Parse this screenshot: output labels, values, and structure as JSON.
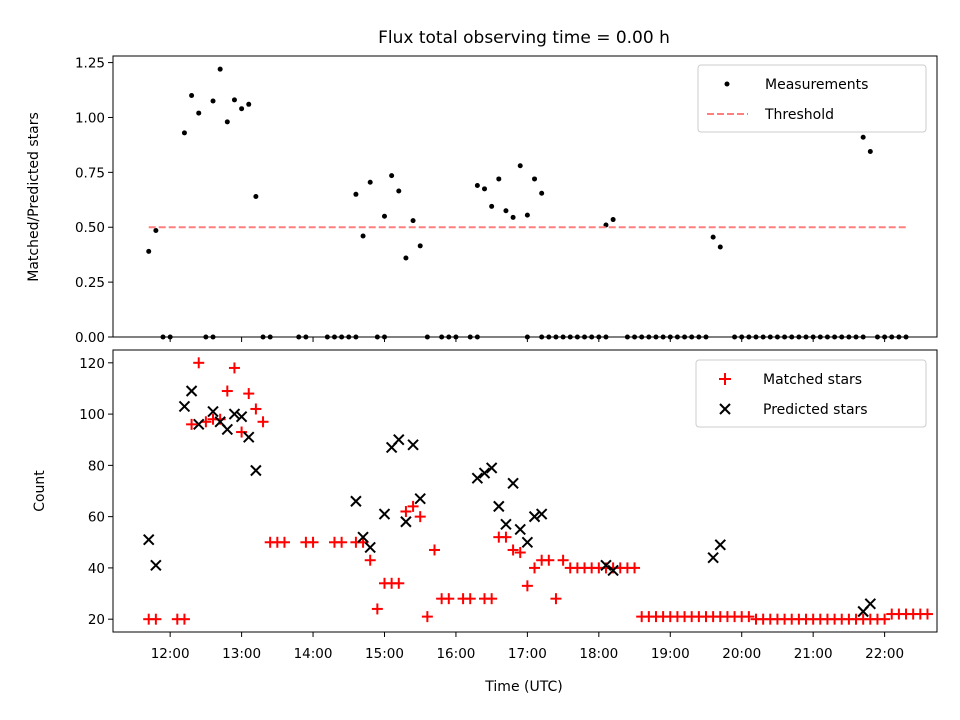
{
  "chart_data": [
    {
      "type": "scatter",
      "title": "Flux total observing time = 0.00 h",
      "xlabel": "",
      "ylabel": "Matched/Predicted stars",
      "ylim": [
        0,
        1.28
      ],
      "yticks": [
        0.0,
        0.25,
        0.5,
        0.75,
        1.0,
        1.25
      ],
      "ytick_labels": [
        "0.00",
        "0.25",
        "0.50",
        "0.75",
        "1.00",
        "1.25"
      ],
      "xlim": [
        "11:12",
        "22:44"
      ],
      "legend": {
        "placement": "top-right",
        "entries": [
          "Measurements",
          "Threshold"
        ]
      },
      "series": [
        {
          "name": "Measurements",
          "marker": "dot",
          "color": "#000000",
          "points": [
            [
              "11:42",
              0.39
            ],
            [
              "11:48",
              0.485
            ],
            [
              "12:12",
              0.93
            ],
            [
              "12:18",
              1.1
            ],
            [
              "12:24",
              1.02
            ],
            [
              "12:36",
              1.075
            ],
            [
              "12:42",
              1.22
            ],
            [
              "12:48",
              0.98
            ],
            [
              "12:54",
              1.08
            ],
            [
              "13:00",
              1.04
            ],
            [
              "13:06",
              1.06
            ],
            [
              "13:12",
              0.64
            ],
            [
              "14:36",
              0.65
            ],
            [
              "14:42",
              0.46
            ],
            [
              "14:48",
              0.705
            ],
            [
              "15:00",
              0.55
            ],
            [
              "15:06",
              0.735
            ],
            [
              "15:12",
              0.665
            ],
            [
              "15:18",
              0.36
            ],
            [
              "15:24",
              0.53
            ],
            [
              "15:30",
              0.415
            ],
            [
              "16:18",
              0.69
            ],
            [
              "16:24",
              0.675
            ],
            [
              "16:30",
              0.595
            ],
            [
              "16:36",
              0.72
            ],
            [
              "16:42",
              0.575
            ],
            [
              "16:48",
              0.545
            ],
            [
              "16:54",
              0.78
            ],
            [
              "17:00",
              0.555
            ],
            [
              "17:06",
              0.72
            ],
            [
              "17:12",
              0.655
            ],
            [
              "18:06",
              0.51
            ],
            [
              "18:12",
              0.535
            ],
            [
              "19:36",
              0.455
            ],
            [
              "19:42",
              0.41
            ],
            [
              "21:42",
              0.91
            ],
            [
              "21:48",
              0.845
            ],
            [
              "11:54",
              0
            ],
            [
              "12:00",
              0
            ],
            [
              "12:30",
              0
            ],
            [
              "12:36",
              0
            ],
            [
              "13:18",
              0
            ],
            [
              "13:24",
              0
            ],
            [
              "13:48",
              0
            ],
            [
              "13:54",
              0
            ],
            [
              "14:12",
              0
            ],
            [
              "14:18",
              0
            ],
            [
              "14:24",
              0
            ],
            [
              "14:30",
              0
            ],
            [
              "14:36",
              0
            ],
            [
              "14:54",
              0
            ],
            [
              "15:00",
              0
            ],
            [
              "15:36",
              0
            ],
            [
              "15:48",
              0
            ],
            [
              "15:54",
              0
            ],
            [
              "16:00",
              0
            ],
            [
              "16:12",
              0
            ],
            [
              "16:18",
              0
            ],
            [
              "17:00",
              0
            ],
            [
              "17:12",
              0
            ],
            [
              "17:18",
              0
            ],
            [
              "17:24",
              0
            ],
            [
              "17:30",
              0
            ],
            [
              "17:36",
              0
            ],
            [
              "17:42",
              0
            ],
            [
              "17:48",
              0
            ],
            [
              "17:54",
              0
            ],
            [
              "18:00",
              0
            ],
            [
              "18:06",
              0
            ],
            [
              "18:24",
              0
            ],
            [
              "18:30",
              0
            ],
            [
              "18:36",
              0
            ],
            [
              "18:42",
              0
            ],
            [
              "18:48",
              0
            ],
            [
              "18:54",
              0
            ],
            [
              "19:00",
              0
            ],
            [
              "19:06",
              0
            ],
            [
              "19:12",
              0
            ],
            [
              "19:18",
              0
            ],
            [
              "19:24",
              0
            ],
            [
              "19:30",
              0
            ],
            [
              "19:54",
              0
            ],
            [
              "20:00",
              0
            ],
            [
              "20:06",
              0
            ],
            [
              "20:12",
              0
            ],
            [
              "20:18",
              0
            ],
            [
              "20:24",
              0
            ],
            [
              "20:30",
              0
            ],
            [
              "20:36",
              0
            ],
            [
              "20:42",
              0
            ],
            [
              "20:48",
              0
            ],
            [
              "20:54",
              0
            ],
            [
              "21:00",
              0
            ],
            [
              "21:06",
              0
            ],
            [
              "21:12",
              0
            ],
            [
              "21:18",
              0
            ],
            [
              "21:24",
              0
            ],
            [
              "21:30",
              0
            ],
            [
              "21:36",
              0
            ],
            [
              "21:42",
              0
            ],
            [
              "21:54",
              0
            ],
            [
              "22:00",
              0
            ],
            [
              "22:06",
              0
            ],
            [
              "22:12",
              0
            ],
            [
              "22:18",
              0
            ]
          ]
        },
        {
          "name": "Threshold",
          "marker": "dashed-line",
          "color": "#ff7f7f",
          "points": [
            [
              "11:42",
              0.5
            ],
            [
              "22:18",
              0.5
            ]
          ]
        }
      ]
    },
    {
      "type": "scatter",
      "title": "",
      "xlabel": "Time (UTC)",
      "ylabel": "Count",
      "ylim": [
        15,
        125
      ],
      "yticks": [
        20,
        40,
        60,
        80,
        100,
        120
      ],
      "ytick_labels": [
        "20",
        "40",
        "60",
        "80",
        "100",
        "120"
      ],
      "xlim": [
        "11:12",
        "22:44"
      ],
      "xticks": [
        "12:00",
        "13:00",
        "14:00",
        "15:00",
        "16:00",
        "17:00",
        "18:00",
        "19:00",
        "20:00",
        "21:00",
        "22:00"
      ],
      "legend": {
        "placement": "top-right",
        "entries": [
          "Matched stars",
          "Predicted stars"
        ]
      },
      "series": [
        {
          "name": "Matched stars",
          "marker": "plus",
          "color": "#ff0000",
          "points": [
            [
              "11:42",
              20
            ],
            [
              "11:48",
              20
            ],
            [
              "12:06",
              20
            ],
            [
              "12:12",
              20
            ],
            [
              "12:18",
              96
            ],
            [
              "12:24",
              120
            ],
            [
              "12:30",
              97
            ],
            [
              "12:36",
              98
            ],
            [
              "12:42",
              98
            ],
            [
              "12:48",
              109
            ],
            [
              "12:54",
              118
            ],
            [
              "13:00",
              93
            ],
            [
              "13:06",
              108
            ],
            [
              "13:12",
              102
            ],
            [
              "13:18",
              97
            ],
            [
              "13:24",
              50
            ],
            [
              "13:30",
              50
            ],
            [
              "13:36",
              50
            ],
            [
              "13:54",
              50
            ],
            [
              "14:00",
              50
            ],
            [
              "14:18",
              50
            ],
            [
              "14:24",
              50
            ],
            [
              "14:36",
              50
            ],
            [
              "14:42",
              50
            ],
            [
              "14:48",
              43
            ],
            [
              "14:54",
              24
            ],
            [
              "15:00",
              34
            ],
            [
              "15:06",
              34
            ],
            [
              "15:12",
              34
            ],
            [
              "15:18",
              62
            ],
            [
              "15:24",
              64
            ],
            [
              "15:30",
              60
            ],
            [
              "15:36",
              21
            ],
            [
              "15:42",
              47
            ],
            [
              "15:48",
              28
            ],
            [
              "15:54",
              28
            ],
            [
              "16:06",
              28
            ],
            [
              "16:12",
              28
            ],
            [
              "16:24",
              28
            ],
            [
              "16:30",
              28
            ],
            [
              "16:36",
              52
            ],
            [
              "16:42",
              52
            ],
            [
              "16:48",
              47
            ],
            [
              "16:54",
              46
            ],
            [
              "17:00",
              33
            ],
            [
              "17:06",
              40
            ],
            [
              "17:12",
              43
            ],
            [
              "17:18",
              43
            ],
            [
              "17:24",
              28
            ],
            [
              "17:30",
              43
            ],
            [
              "17:36",
              40
            ],
            [
              "17:42",
              40
            ],
            [
              "17:48",
              40
            ],
            [
              "17:54",
              40
            ],
            [
              "18:00",
              40
            ],
            [
              "18:06",
              40
            ],
            [
              "18:12",
              40
            ],
            [
              "18:18",
              40
            ],
            [
              "18:24",
              40
            ],
            [
              "18:30",
              40
            ],
            [
              "18:36",
              21
            ],
            [
              "18:42",
              21
            ],
            [
              "18:48",
              21
            ],
            [
              "18:54",
              21
            ],
            [
              "19:00",
              21
            ],
            [
              "19:06",
              21
            ],
            [
              "19:12",
              21
            ],
            [
              "19:18",
              21
            ],
            [
              "19:24",
              21
            ],
            [
              "19:30",
              21
            ],
            [
              "19:36",
              21
            ],
            [
              "19:42",
              21
            ],
            [
              "19:48",
              21
            ],
            [
              "19:54",
              21
            ],
            [
              "20:00",
              21
            ],
            [
              "20:06",
              21
            ],
            [
              "20:12",
              20
            ],
            [
              "20:18",
              20
            ],
            [
              "20:24",
              20
            ],
            [
              "20:30",
              20
            ],
            [
              "20:36",
              20
            ],
            [
              "20:42",
              20
            ],
            [
              "20:48",
              20
            ],
            [
              "20:54",
              20
            ],
            [
              "21:00",
              20
            ],
            [
              "21:06",
              20
            ],
            [
              "21:12",
              20
            ],
            [
              "21:18",
              20
            ],
            [
              "21:24",
              20
            ],
            [
              "21:30",
              20
            ],
            [
              "21:36",
              20
            ],
            [
              "21:42",
              20
            ],
            [
              "21:48",
              20
            ],
            [
              "21:54",
              20
            ],
            [
              "22:00",
              20
            ],
            [
              "22:06",
              22
            ],
            [
              "22:12",
              22
            ],
            [
              "22:18",
              22
            ],
            [
              "22:24",
              22
            ],
            [
              "22:30",
              22
            ],
            [
              "22:36",
              22
            ]
          ]
        },
        {
          "name": "Predicted stars",
          "marker": "x",
          "color": "#000000",
          "points": [
            [
              "11:42",
              51
            ],
            [
              "11:48",
              41
            ],
            [
              "12:12",
              103
            ],
            [
              "12:18",
              109
            ],
            [
              "12:24",
              96
            ],
            [
              "12:36",
              101
            ],
            [
              "12:42",
              97
            ],
            [
              "12:48",
              94
            ],
            [
              "12:54",
              100
            ],
            [
              "13:00",
              99
            ],
            [
              "13:06",
              91
            ],
            [
              "13:12",
              78
            ],
            [
              "14:36",
              66
            ],
            [
              "14:42",
              52
            ],
            [
              "14:48",
              48
            ],
            [
              "15:00",
              61
            ],
            [
              "15:06",
              87
            ],
            [
              "15:12",
              90
            ],
            [
              "15:18",
              58
            ],
            [
              "15:24",
              88
            ],
            [
              "15:30",
              67
            ],
            [
              "16:18",
              75
            ],
            [
              "16:24",
              77
            ],
            [
              "16:30",
              79
            ],
            [
              "16:36",
              64
            ],
            [
              "16:42",
              57
            ],
            [
              "16:48",
              73
            ],
            [
              "16:54",
              55
            ],
            [
              "17:00",
              50
            ],
            [
              "17:06",
              60
            ],
            [
              "17:12",
              61
            ],
            [
              "18:06",
              41
            ],
            [
              "18:12",
              39
            ],
            [
              "19:36",
              44
            ],
            [
              "19:42",
              49
            ],
            [
              "21:42",
              23
            ],
            [
              "21:48",
              26
            ]
          ]
        }
      ]
    }
  ]
}
